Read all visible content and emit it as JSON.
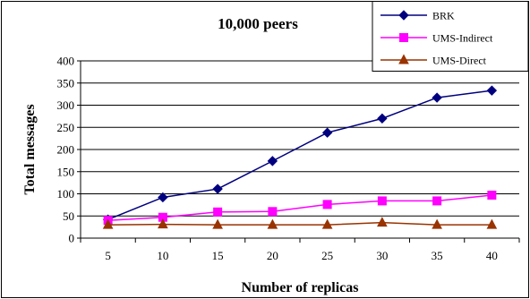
{
  "chart_data": {
    "type": "line",
    "title": "10,000 peers",
    "xlabel": "Number of replicas",
    "ylabel": "Total messages",
    "x": [
      5,
      10,
      15,
      20,
      25,
      30,
      35,
      40
    ],
    "ylim": [
      0,
      400
    ],
    "yticks": [
      0,
      50,
      100,
      150,
      200,
      250,
      300,
      350,
      400
    ],
    "grid": true,
    "legend_position": "top-right",
    "series": [
      {
        "name": "BRK",
        "color": "#00007F",
        "marker": "diamond",
        "values": [
          42,
          92,
          111,
          174,
          238,
          270,
          317,
          333
        ]
      },
      {
        "name": "UMS-Indirect",
        "color": "#FF00FF",
        "marker": "square",
        "values": [
          40,
          47,
          59,
          60,
          76,
          84,
          84,
          97
        ]
      },
      {
        "name": "UMS-Direct",
        "color": "#993300",
        "marker": "triangle",
        "values": [
          30,
          31,
          30,
          30,
          30,
          35,
          30,
          30
        ]
      }
    ]
  }
}
